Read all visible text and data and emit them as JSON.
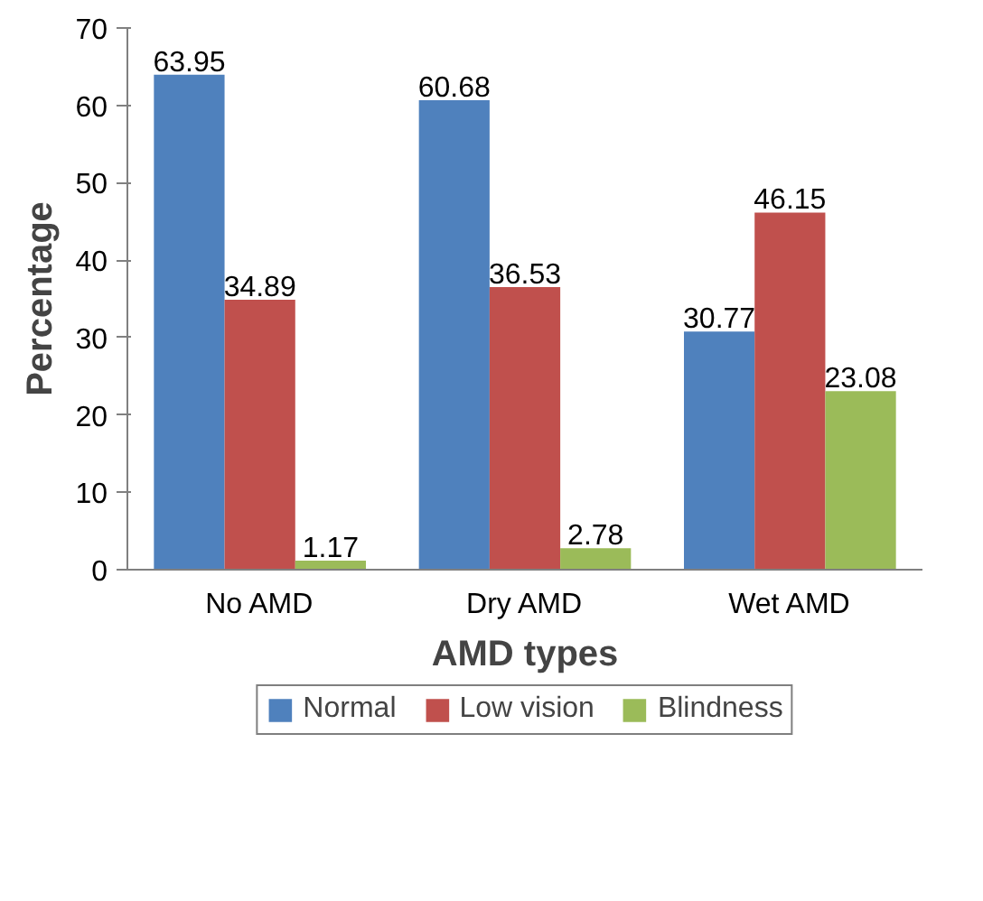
{
  "chart_data": {
    "type": "bar",
    "xlabel": "AMD types",
    "ylabel": "Percentage",
    "categories": [
      "No AMD",
      "Dry AMD",
      "Wet AMD"
    ],
    "series": [
      {
        "name": "Normal",
        "color": "#4f81bd",
        "values": [
          63.95,
          60.68,
          30.77
        ]
      },
      {
        "name": "Low vision",
        "color": "#c0504d",
        "values": [
          34.89,
          36.53,
          46.15
        ]
      },
      {
        "name": "Blindness",
        "color": "#9bbb59",
        "values": [
          1.17,
          2.78,
          23.08
        ]
      }
    ],
    "ylim": [
      0,
      70
    ],
    "yticks": [
      0,
      10,
      20,
      30,
      40,
      50,
      60,
      70
    ],
    "data_labels": true,
    "legend": "bottom",
    "grid": false
  }
}
